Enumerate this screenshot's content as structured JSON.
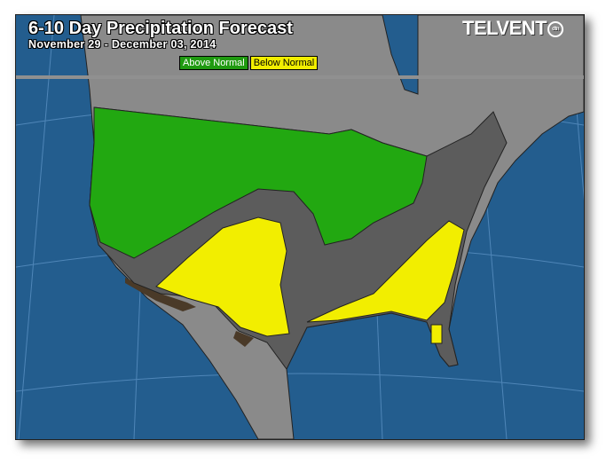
{
  "header": {
    "title": "6-10 Day Precipitation Forecast",
    "date_range": "November 29 - December 03, 2014",
    "logo": "TELVENT",
    "logo_badge": "dtn"
  },
  "legend": {
    "items": [
      {
        "label": "Above Normal",
        "color": "#1f9a10"
      },
      {
        "label": "Below Normal",
        "color": "#f2ee00"
      }
    ]
  },
  "colors": {
    "ocean": "#235d8e",
    "land": "#8a8a8a",
    "us_normal": "#5c5c5c",
    "above_normal": "#22a811",
    "below_normal": "#f2ee00",
    "coast_shadow": "#4a3a28"
  }
}
